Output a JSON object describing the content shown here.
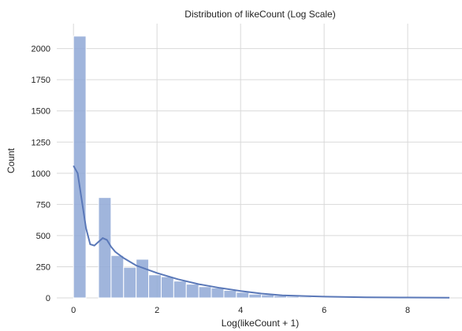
{
  "chart_data": {
    "type": "bar",
    "title": "Distribution of likeCount (Log Scale)",
    "xlabel": "Log(likeCount + 1)",
    "ylabel": "Count",
    "xlim": [
      -0.4,
      9.3
    ],
    "ylim": [
      0,
      2200
    ],
    "xticks": [
      0,
      2,
      4,
      6,
      8
    ],
    "yticks": [
      0,
      250,
      500,
      750,
      1000,
      1250,
      1500,
      1750,
      2000
    ],
    "grid": true,
    "bar_color": "#8fa8d6",
    "kde_color": "#5a78b8",
    "bins": [
      {
        "x0": 0.0,
        "x1": 0.3,
        "value": 2100
      },
      {
        "x0": 0.3,
        "x1": 0.6,
        "value": 0
      },
      {
        "x0": 0.6,
        "x1": 0.9,
        "value": 805
      },
      {
        "x0": 0.9,
        "x1": 1.2,
        "value": 340
      },
      {
        "x0": 1.2,
        "x1": 1.5,
        "value": 245
      },
      {
        "x0": 1.5,
        "x1": 1.8,
        "value": 310
      },
      {
        "x0": 1.8,
        "x1": 2.1,
        "value": 185
      },
      {
        "x0": 2.1,
        "x1": 2.4,
        "value": 170
      },
      {
        "x0": 2.4,
        "x1": 2.7,
        "value": 135
      },
      {
        "x0": 2.7,
        "x1": 3.0,
        "value": 110
      },
      {
        "x0": 3.0,
        "x1": 3.3,
        "value": 90
      },
      {
        "x0": 3.3,
        "x1": 3.6,
        "value": 80
      },
      {
        "x0": 3.6,
        "x1": 3.9,
        "value": 60
      },
      {
        "x0": 3.9,
        "x1": 4.2,
        "value": 45
      },
      {
        "x0": 4.2,
        "x1": 4.5,
        "value": 30
      },
      {
        "x0": 4.5,
        "x1": 4.8,
        "value": 25
      },
      {
        "x0": 4.8,
        "x1": 5.1,
        "value": 18
      },
      {
        "x0": 5.1,
        "x1": 5.4,
        "value": 12
      },
      {
        "x0": 5.4,
        "x1": 5.7,
        "value": 8
      },
      {
        "x0": 5.7,
        "x1": 6.0,
        "value": 6
      },
      {
        "x0": 6.0,
        "x1": 6.3,
        "value": 5
      },
      {
        "x0": 6.3,
        "x1": 6.6,
        "value": 4
      },
      {
        "x0": 6.6,
        "x1": 6.9,
        "value": 3
      },
      {
        "x0": 6.9,
        "x1": 7.2,
        "value": 3
      },
      {
        "x0": 7.2,
        "x1": 7.5,
        "value": 2
      },
      {
        "x0": 7.5,
        "x1": 7.8,
        "value": 2
      },
      {
        "x0": 7.8,
        "x1": 8.1,
        "value": 1
      },
      {
        "x0": 8.1,
        "x1": 8.4,
        "value": 1
      },
      {
        "x0": 8.4,
        "x1": 8.7,
        "value": 1
      },
      {
        "x0": 8.7,
        "x1": 9.0,
        "value": 1
      }
    ],
    "kde": {
      "x": [
        0.0,
        0.1,
        0.2,
        0.3,
        0.4,
        0.5,
        0.6,
        0.7,
        0.8,
        0.9,
        1.0,
        1.2,
        1.5,
        2.0,
        2.5,
        3.0,
        3.5,
        4.0,
        4.5,
        5.0,
        6.0,
        7.0,
        8.0,
        9.0
      ],
      "y": [
        1060,
        1000,
        780,
        560,
        430,
        420,
        450,
        480,
        465,
        410,
        370,
        320,
        260,
        200,
        150,
        110,
        80,
        55,
        35,
        20,
        10,
        5,
        3,
        2
      ]
    }
  }
}
